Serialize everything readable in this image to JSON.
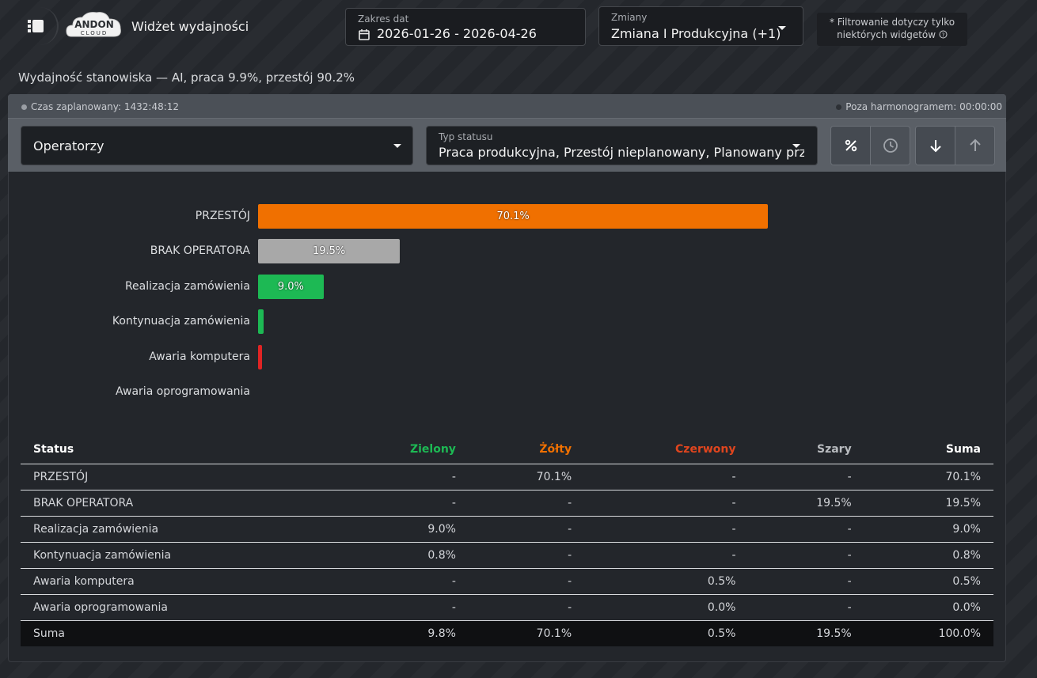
{
  "header": {
    "title": "Widżet wydajności",
    "logo_text_top": "ANDON",
    "logo_text_bottom": "CLOUD",
    "date_range": {
      "label": "Zakres dat",
      "value": "2026-01-26 - 2026-04-26"
    },
    "shifts": {
      "label": "Zmiany",
      "value": "Zmiana I Produkcyjna (+1)"
    },
    "filter_note_line1": "* Filtrowanie dotyczy tylko",
    "filter_note_line2": "niektórych widgetów"
  },
  "subtitle": "Wydajność stanowiska — AI, praca 9.9%, przestój 90.2%",
  "panel": {
    "planned_time": "Czas zaplanowany: 1432:48:12",
    "outside_schedule": "Poza harmonogramem: 00:00:00",
    "operators_select": "Operatorzy",
    "status_type": {
      "label": "Typ statusu",
      "value": "Praca produkcyjna, Przestój nieplanowany, Planowany przestój"
    },
    "buttons": {
      "percent": "percent-icon",
      "time": "clock-icon",
      "sort_desc": "arrow-down-icon",
      "sort_asc": "arrow-up-icon"
    }
  },
  "chart_data": {
    "type": "bar",
    "orientation": "horizontal",
    "categories": [
      "PRZESTÓJ",
      "BRAK OPERATORA",
      "Realizacja zamówienia",
      "Kontynuacja zamówienia",
      "Awaria komputera",
      "Awaria oprogramowania"
    ],
    "values": [
      70.1,
      19.5,
      9.0,
      0.8,
      0.5,
      0.0
    ],
    "value_labels": [
      "70.1%",
      "19.5%",
      "9.0%",
      "",
      "",
      ""
    ],
    "colors": [
      "#f07000",
      "#a8a8a8",
      "#1db954",
      "#1db954",
      "#e02424",
      "#888888"
    ],
    "xlim": [
      0,
      100
    ]
  },
  "table": {
    "headers": [
      "Status",
      "Zielony",
      "Żółty",
      "Czerwony",
      "Szary",
      "Suma"
    ],
    "header_colors": [
      "#ffffff",
      "#1db954",
      "#f07000",
      "#e0451e",
      "#b8bbbf",
      "#ffffff"
    ],
    "rows": [
      [
        "PRZESTÓJ",
        "-",
        "70.1%",
        "-",
        "-",
        "70.1%"
      ],
      [
        "BRAK OPERATORA",
        "-",
        "-",
        "-",
        "19.5%",
        "19.5%"
      ],
      [
        "Realizacja zamówienia",
        "9.0%",
        "-",
        "-",
        "-",
        "9.0%"
      ],
      [
        "Kontynuacja zamówienia",
        "0.8%",
        "-",
        "-",
        "-",
        "0.8%"
      ],
      [
        "Awaria komputera",
        "-",
        "-",
        "0.5%",
        "-",
        "0.5%"
      ],
      [
        "Awaria oprogramowania",
        "-",
        "-",
        "0.0%",
        "-",
        "0.0%"
      ]
    ],
    "sum_row": [
      "Suma",
      "9.8%",
      "70.1%",
      "0.5%",
      "19.5%",
      "100.0%"
    ]
  }
}
